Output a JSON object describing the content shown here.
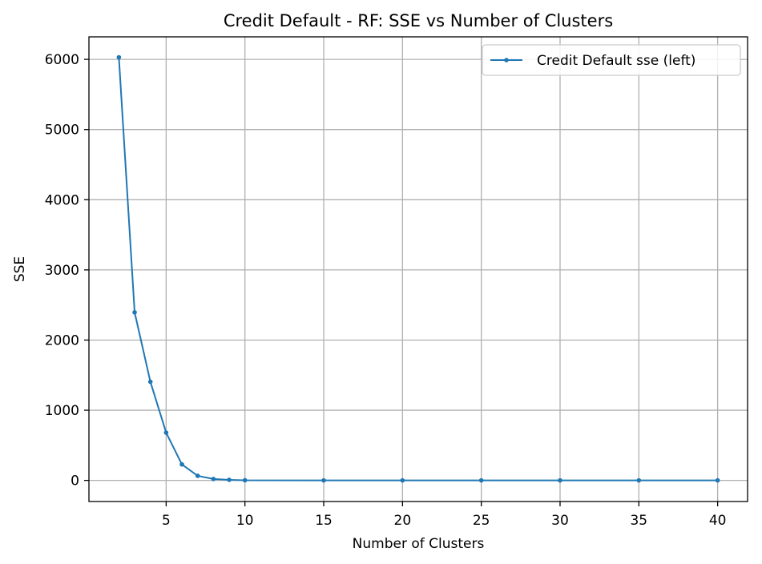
{
  "chart_data": {
    "type": "line",
    "title": "Credit Default - RF: SSE vs Number of Clusters",
    "xlabel": "Number of Clusters",
    "ylabel": "SSE",
    "xlim": [
      0.1,
      41.9
    ],
    "ylim": [
      -301,
      6321
    ],
    "xticks": [
      5,
      10,
      15,
      20,
      25,
      30,
      35,
      40
    ],
    "yticks": [
      0,
      1000,
      2000,
      3000,
      4000,
      5000,
      6000
    ],
    "grid": true,
    "legend_position": "top-right",
    "series": [
      {
        "name": "Credit Default sse (left)",
        "color": "#1f77b4",
        "marker": "point",
        "x": [
          2,
          3,
          4,
          5,
          6,
          7,
          8,
          9,
          10,
          15,
          20,
          25,
          30,
          35,
          40
        ],
        "y": [
          6030,
          2395,
          1405,
          680,
          228,
          65,
          20,
          8,
          2,
          0,
          0,
          0,
          0,
          0,
          0
        ]
      }
    ]
  }
}
